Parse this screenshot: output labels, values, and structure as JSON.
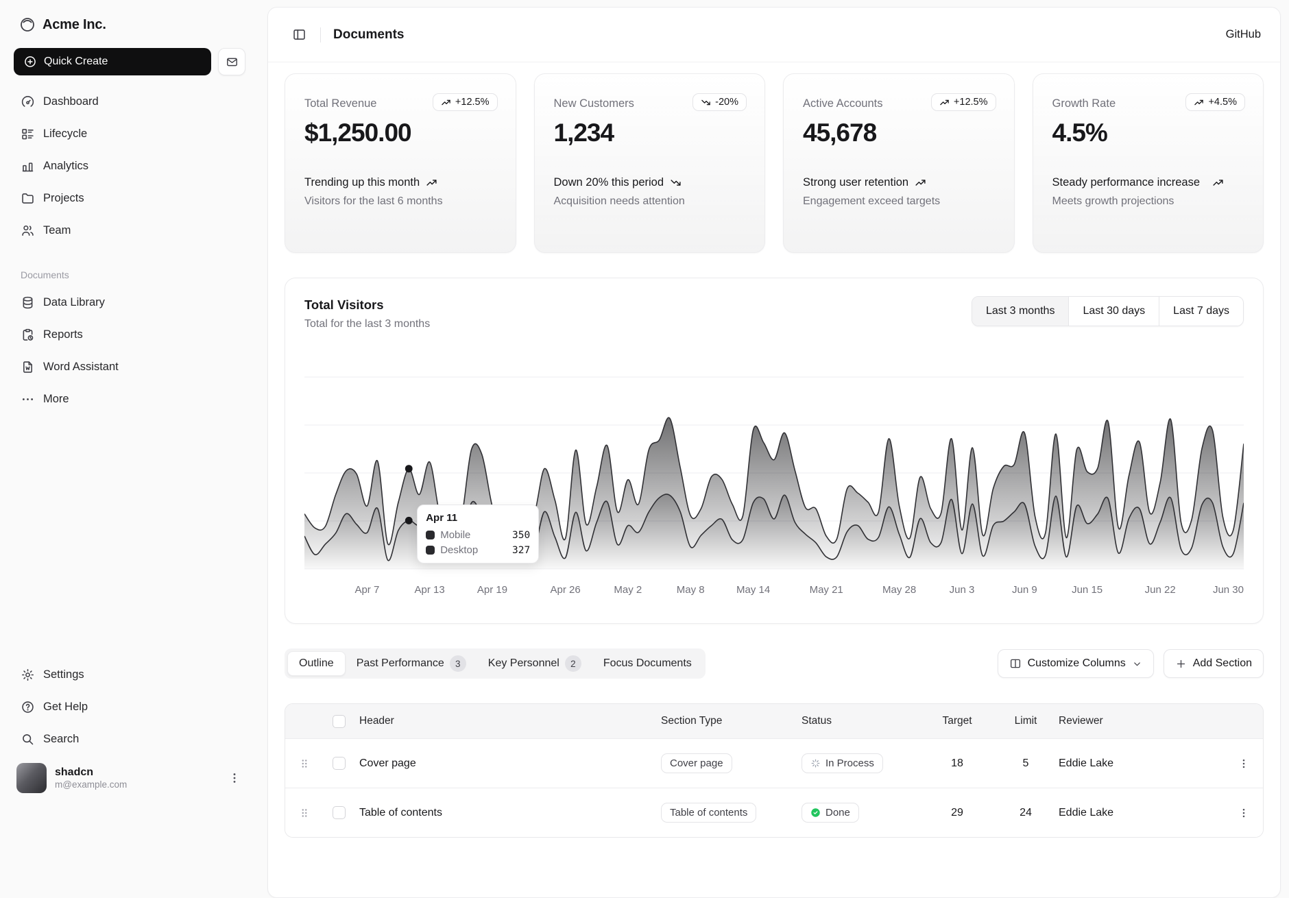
{
  "sidebar": {
    "brand": "Acme Inc.",
    "quick_create": "Quick Create",
    "nav_main": [
      {
        "label": "Dashboard",
        "icon": "dashboard-icon"
      },
      {
        "label": "Lifecycle",
        "icon": "list-details-icon"
      },
      {
        "label": "Analytics",
        "icon": "bar-chart-icon"
      },
      {
        "label": "Projects",
        "icon": "folder-icon"
      },
      {
        "label": "Team",
        "icon": "users-icon"
      }
    ],
    "section_label": "Documents",
    "nav_documents": [
      {
        "label": "Data Library",
        "icon": "database-icon"
      },
      {
        "label": "Reports",
        "icon": "report-icon"
      },
      {
        "label": "Word Assistant",
        "icon": "file-word-icon"
      },
      {
        "label": "More",
        "icon": "dots-icon"
      }
    ],
    "nav_footer": [
      {
        "label": "Settings",
        "icon": "gear-icon"
      },
      {
        "label": "Get Help",
        "icon": "help-icon"
      },
      {
        "label": "Search",
        "icon": "search-icon"
      }
    ],
    "user": {
      "name": "shadcn",
      "email": "m@example.com"
    }
  },
  "header": {
    "title": "Documents",
    "github": "GitHub"
  },
  "cards": [
    {
      "label": "Total Revenue",
      "value": "$1,250.00",
      "badge": "+12.5%",
      "trend": "up",
      "footer_title": "Trending up this month",
      "footer_sub": "Visitors for the last 6 months"
    },
    {
      "label": "New Customers",
      "value": "1,234",
      "badge": "-20%",
      "trend": "down",
      "footer_title": "Down 20% this period",
      "footer_sub": "Acquisition needs attention"
    },
    {
      "label": "Active Accounts",
      "value": "45,678",
      "badge": "+12.5%",
      "trend": "up",
      "footer_title": "Strong user retention",
      "footer_sub": "Engagement exceed targets"
    },
    {
      "label": "Growth Rate",
      "value": "4.5%",
      "badge": "+4.5%",
      "trend": "up",
      "footer_title": "Steady performance increase",
      "footer_sub": "Meets growth projections"
    }
  ],
  "chart": {
    "title": "Total Visitors",
    "subtitle": "Total for the last 3 months",
    "ranges": [
      "Last 3 months",
      "Last 30 days",
      "Last 7 days"
    ],
    "active_range": "Last 3 months",
    "tooltip": {
      "title": "Apr 11",
      "rows": [
        {
          "label": "Mobile",
          "value": "350"
        },
        {
          "label": "Desktop",
          "value": "327"
        }
      ]
    }
  },
  "chart_data": {
    "type": "area",
    "stacked": true,
    "title": "Total Visitors",
    "x_range": "Apr 1 - Jun 30",
    "y_max": 1296,
    "tooltip_index": 10,
    "ticks": [
      {
        "label": "Apr 7",
        "i": 6
      },
      {
        "label": "Apr 13",
        "i": 12
      },
      {
        "label": "Apr 19",
        "i": 18
      },
      {
        "label": "Apr 26",
        "i": 25
      },
      {
        "label": "May 2",
        "i": 31
      },
      {
        "label": "May 8",
        "i": 37
      },
      {
        "label": "May 14",
        "i": 43
      },
      {
        "label": "May 21",
        "i": 50
      },
      {
        "label": "May 28",
        "i": 57
      },
      {
        "label": "Jun 3",
        "i": 63
      },
      {
        "label": "Jun 9",
        "i": 69
      },
      {
        "label": "Jun 15",
        "i": 75
      },
      {
        "label": "Jun 22",
        "i": 82
      },
      {
        "label": "Jun 30",
        "i": 90
      }
    ],
    "series": [
      {
        "name": "Desktop",
        "values": [
          222,
          97,
          167,
          242,
          373,
          301,
          245,
          409,
          59,
          261,
          327,
          292,
          342,
          137,
          120,
          138,
          446,
          364,
          243,
          89,
          137,
          224,
          138,
          387,
          215,
          75,
          383,
          122,
          315,
          454,
          165,
          293,
          247,
          385,
          481,
          498,
          388,
          149,
          227,
          293,
          335,
          197,
          197,
          448,
          473,
          338,
          499,
          315,
          235,
          177,
          82,
          81,
          252,
          294,
          201,
          213,
          420,
          233,
          78,
          340,
          178,
          178,
          470,
          103,
          439,
          88,
          294,
          323,
          385,
          438,
          155,
          92,
          492,
          81,
          426,
          307,
          371,
          475,
          107,
          341,
          408,
          169,
          317,
          480,
          132,
          141,
          434,
          448,
          149,
          103,
          446
        ]
      },
      {
        "name": "Mobile",
        "values": [
          150,
          180,
          120,
          260,
          290,
          340,
          180,
          320,
          110,
          190,
          350,
          210,
          380,
          220,
          170,
          190,
          360,
          410,
          180,
          150,
          200,
          170,
          230,
          290,
          250,
          130,
          420,
          180,
          240,
          380,
          220,
          310,
          190,
          420,
          390,
          520,
          300,
          210,
          180,
          330,
          270,
          240,
          160,
          490,
          380,
          400,
          420,
          350,
          180,
          230,
          140,
          120,
          290,
          220,
          250,
          170,
          460,
          190,
          130,
          280,
          230,
          200,
          410,
          160,
          380,
          140,
          250,
          370,
          320,
          480,
          200,
          150,
          420,
          130,
          380,
          350,
          310,
          520,
          170,
          290,
          450,
          210,
          270,
          530,
          180,
          190,
          380,
          490,
          200,
          160,
          400
        ]
      }
    ]
  },
  "tabs": [
    {
      "label": "Outline",
      "badge": ""
    },
    {
      "label": "Past Performance",
      "badge": "3"
    },
    {
      "label": "Key Personnel",
      "badge": "2"
    },
    {
      "label": "Focus Documents",
      "badge": ""
    }
  ],
  "actions": {
    "customize_label": "Customize Columns",
    "add_label": "Add Section"
  },
  "table": {
    "columns": {
      "header": "Header",
      "section_type": "Section Type",
      "status": "Status",
      "target": "Target",
      "limit": "Limit",
      "reviewer": "Reviewer"
    },
    "rows": [
      {
        "header": "Cover page",
        "type": "Cover page",
        "status": "In Process",
        "status_kind": "in-process",
        "target": "18",
        "limit": "5",
        "reviewer": "Eddie Lake"
      },
      {
        "header": "Table of contents",
        "type": "Table of contents",
        "status": "Done",
        "status_kind": "done",
        "target": "29",
        "limit": "24",
        "reviewer": "Eddie Lake"
      }
    ]
  }
}
